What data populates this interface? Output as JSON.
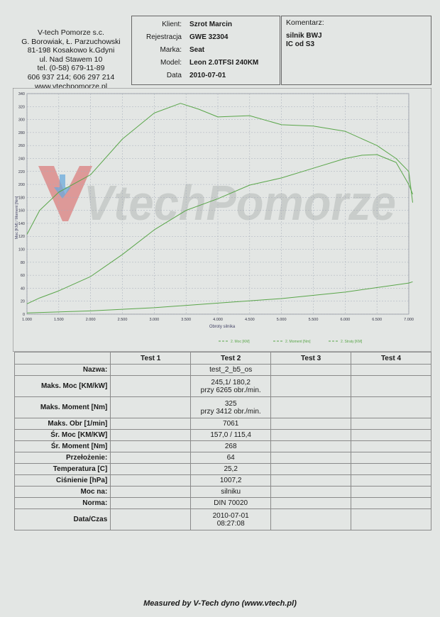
{
  "company": {
    "name": "V-tech Pomorze s.c.",
    "owners": "G. Borowiak, Ł. Parzuchowski",
    "address1": "81-198 Kosakowo k.Gdyni",
    "address2": "ul. Nad Stawem 10",
    "phone1": "tel. (0-58) 679-11-89",
    "phone2": "606 937 214; 606 297 214",
    "website": "www.vtechpomorze.pl"
  },
  "client": [
    {
      "label": "Klient:",
      "value": "Szrot Marcin"
    },
    {
      "label": "Rejestracja",
      "value": "GWE 32304"
    },
    {
      "label": "Marka:",
      "value": "Seat"
    },
    {
      "label": "Model:",
      "value": "Leon 2.0TFSI 240KM"
    },
    {
      "label": "Data",
      "value": "2010-07-01"
    }
  ],
  "comment": {
    "title": "Komentarz:",
    "line1": "silnik BWJ",
    "line2": "IC od S3"
  },
  "watermark": "VtechPomorze",
  "chart_data": {
    "type": "line",
    "xlabel": "Obroty silnika",
    "ylabel": "Moc [KM] / Moment [Nm]",
    "xlim": [
      1000,
      7000
    ],
    "ylim": [
      0,
      340
    ],
    "x_ticks": [
      "1.000",
      "1.500",
      "2.000",
      "2.500",
      "3.000",
      "3.500",
      "4.000",
      "4.500",
      "5.000",
      "5.500",
      "6.000",
      "6.500",
      "7.000"
    ],
    "y_ticks": [
      "0",
      "20",
      "40",
      "60",
      "80",
      "100",
      "120",
      "140",
      "160",
      "180",
      "200",
      "220",
      "240",
      "260",
      "280",
      "300",
      "320",
      "340"
    ],
    "grid": true,
    "legend_position": "bottom",
    "series": [
      {
        "name": "2. Moc [KM]",
        "color": "#5aa64a",
        "x": [
          1000,
          1200,
          1500,
          2000,
          2500,
          3000,
          3500,
          4000,
          4500,
          5000,
          5500,
          6000,
          6265,
          6500,
          6800,
          7000,
          7061
        ],
        "values": [
          16,
          25,
          36,
          58,
          92,
          130,
          160,
          178,
          199,
          210,
          225,
          240,
          245,
          246,
          234,
          200,
          185
        ]
      },
      {
        "name": "2. Moment [Nm]",
        "color": "#5aa64a",
        "x": [
          1000,
          1200,
          1500,
          2000,
          2500,
          3000,
          3412,
          3700,
          4000,
          4500,
          5000,
          5500,
          6000,
          6500,
          6800,
          7000,
          7061
        ],
        "values": [
          123,
          160,
          188,
          215,
          270,
          310,
          325,
          316,
          304,
          306,
          292,
          290,
          282,
          260,
          240,
          220,
          172
        ]
      },
      {
        "name": "2. Straty [KM]",
        "color": "#5aa64a",
        "x": [
          1000,
          2000,
          3000,
          4000,
          5000,
          6000,
          7000,
          7061
        ],
        "values": [
          2,
          5,
          10,
          17,
          24,
          34,
          48,
          50
        ]
      }
    ]
  },
  "results": {
    "headers": [
      "Test 1",
      "Test 2",
      "Test 3",
      "Test 4"
    ],
    "rows": [
      {
        "label": "Nazwa:",
        "test2": "test_2_b5_os"
      },
      {
        "label": "Maks. Moc [KM/kW]",
        "test2": "245,1/ 180,2",
        "test2b": "przy 6265 obr./min."
      },
      {
        "label": "Maks. Moment [Nm]",
        "test2": "325",
        "test2b": "przy 3412 obr./min."
      },
      {
        "label": "Maks. Obr [1/min]",
        "test2": "7061"
      },
      {
        "label": "Śr. Moc [KM/KW]",
        "test2": "157,0 / 115,4"
      },
      {
        "label": "Śr. Moment [Nm]",
        "test2": "268"
      },
      {
        "label": "Przełożenie:",
        "test2": "64"
      },
      {
        "label": "Temperatura [C]",
        "test2": "25,2"
      },
      {
        "label": "Ciśnienie [hPa]",
        "test2": "1007,2"
      },
      {
        "label": "Moc na:",
        "test2": "silniku"
      },
      {
        "label": "Norma:",
        "test2": "DIN 70020"
      },
      {
        "label": "Data/Czas",
        "test2": "2010-07-01",
        "test2b": "08:27:08"
      }
    ]
  },
  "footer": "Measured by V-Tech dyno (www.vtech.pl)"
}
